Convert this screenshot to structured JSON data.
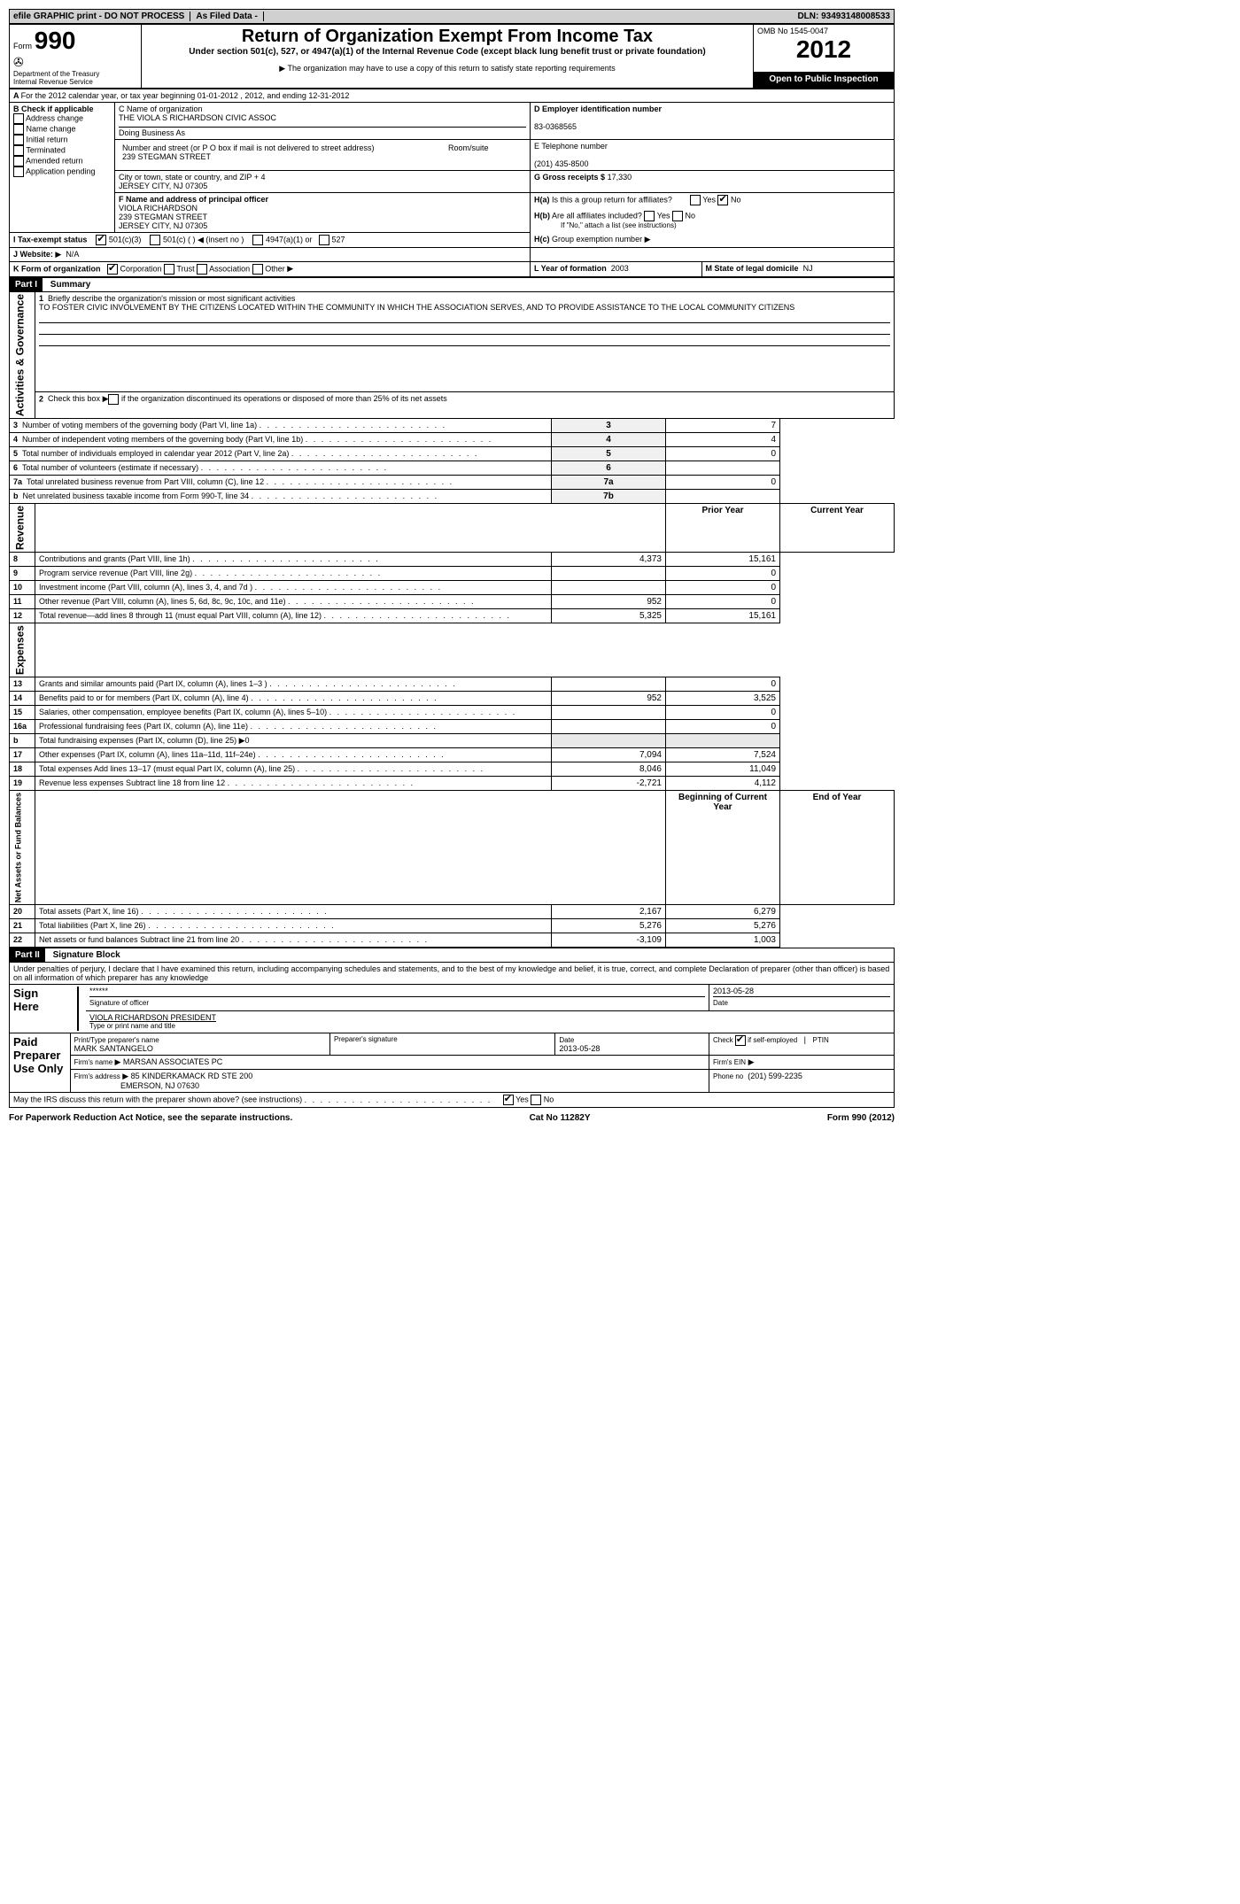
{
  "topbar": {
    "efile": "efile GRAPHIC print - DO NOT PROCESS",
    "asfiled": "As Filed Data -",
    "dln_label": "DLN:",
    "dln": "93493148008533"
  },
  "header": {
    "form_label": "Form",
    "form_num": "990",
    "dept": "Department of the Treasury",
    "irs": "Internal Revenue Service",
    "title": "Return of Organization Exempt From Income Tax",
    "subtitle": "Under section 501(c), 527, or 4947(a)(1) of the Internal Revenue Code (except black lung benefit trust or private foundation)",
    "note": "The organization may have to use a copy of this return to satisfy state reporting requirements",
    "omb": "OMB No 1545-0047",
    "year": "2012",
    "open": "Open to Public Inspection"
  },
  "sectionA": {
    "for_year": "For the 2012 calendar year, or tax year beginning 01-01-2012    , 2012, and ending 12-31-2012",
    "b_label": "B Check if applicable",
    "checks": [
      "Address change",
      "Name change",
      "Initial return",
      "Terminated",
      "Amended return",
      "Application pending"
    ],
    "c_name_label": "C Name of organization",
    "c_name": "THE VIOLA S RICHARDSON CIVIC ASSOC",
    "dba_label": "Doing Business As",
    "street_label": "Number and street (or P O  box if mail is not delivered to street address)",
    "room_label": "Room/suite",
    "street": "239 STEGMAN STREET",
    "city_label": "City or town, state or country, and ZIP + 4",
    "city": "JERSEY CITY, NJ  07305",
    "d_label": "D Employer identification number",
    "d_ein": "83-0368565",
    "e_label": "E Telephone number",
    "e_phone": "(201) 435-8500",
    "g_label": "G Gross receipts $",
    "g_val": "17,330",
    "f_label": "F  Name and address of principal officer",
    "f_name": "VIOLA RICHARDSON",
    "f_street": "239 STEGMAN STREET",
    "f_city": "JERSEY CITY, NJ  07305",
    "ha_label": "H(a)  Is this a group return for affiliates?",
    "hb_label": "H(b)  Are all affiliates included?",
    "hb_note": "If \"No,\" attach a list  (see instructions)",
    "hc_label": "H(c)   Group exemption number",
    "i_label": "I   Tax-exempt status",
    "i_opts": [
      "501(c)(3)",
      "501(c) ( )    (insert no )",
      "4947(a)(1) or",
      "527"
    ],
    "j_label": "J  Website:",
    "j_val": "N/A",
    "k_label": "K Form of organization",
    "k_opts": [
      "Corporation",
      "Trust",
      "Association",
      "Other"
    ],
    "l_label": "L Year of formation",
    "l_val": "2003",
    "m_label": "M State of legal domicile",
    "m_val": "NJ",
    "yes": "Yes",
    "no": "No"
  },
  "partI": {
    "tag": "Part I",
    "title": "Summary",
    "q1_label": "Briefly describe the organization's mission or most significant activities",
    "q1_text": "TO FOSTER CIVIC INVOLVEMENT BY THE CITIZENS LOCATED WITHIN THE COMMUNITY IN WHICH THE ASSOCIATION SERVES, AND TO PROVIDE ASSISTANCE TO THE LOCAL COMMUNITY CITIZENS",
    "q2": "Check this box ▶┌─ if the organization discontinued its operations or disposed of more than 25% of its net assets",
    "rows_gov": [
      {
        "n": "3",
        "t": "Number of voting members of the governing body (Part VI, line 1a)",
        "b": "3",
        "v": "7"
      },
      {
        "n": "4",
        "t": "Number of independent voting members of the governing body (Part VI, line 1b)",
        "b": "4",
        "v": "4"
      },
      {
        "n": "5",
        "t": "Total number of individuals employed in calendar year 2012 (Part V, line 2a)",
        "b": "5",
        "v": "0"
      },
      {
        "n": "6",
        "t": "Total number of volunteers (estimate if necessary)",
        "b": "6",
        "v": ""
      },
      {
        "n": "7a",
        "t": "Total unrelated business revenue from Part VIII, column (C), line 12",
        "b": "7a",
        "v": "0"
      },
      {
        "n": "b",
        "t": "Net unrelated business taxable income from Form 990-T, line 34",
        "b": "7b",
        "v": ""
      }
    ],
    "hdr_prior": "Prior Year",
    "hdr_current": "Current Year",
    "rows_rev": [
      {
        "n": "8",
        "t": "Contributions and grants (Part VIII, line 1h)",
        "p": "4,373",
        "c": "15,161"
      },
      {
        "n": "9",
        "t": "Program service revenue (Part VIII, line 2g)",
        "p": "",
        "c": "0"
      },
      {
        "n": "10",
        "t": "Investment income (Part VIII, column (A), lines 3, 4, and 7d )",
        "p": "",
        "c": "0"
      },
      {
        "n": "11",
        "t": "Other revenue (Part VIII, column (A), lines 5, 6d, 8c, 9c, 10c, and 11e)",
        "p": "952",
        "c": "0"
      },
      {
        "n": "12",
        "t": "Total revenue—add lines 8 through 11 (must equal Part VIII, column (A), line 12)",
        "p": "5,325",
        "c": "15,161"
      }
    ],
    "rows_exp": [
      {
        "n": "13",
        "t": "Grants and similar amounts paid (Part IX, column (A), lines 1–3 )",
        "p": "",
        "c": "0"
      },
      {
        "n": "14",
        "t": "Benefits paid to or for members (Part IX, column (A), line 4)",
        "p": "952",
        "c": "3,525"
      },
      {
        "n": "15",
        "t": "Salaries, other compensation, employee benefits (Part IX, column (A), lines 5–10)",
        "p": "",
        "c": "0"
      },
      {
        "n": "16a",
        "t": "Professional fundraising fees (Part IX, column (A), line 11e)",
        "p": "",
        "c": "0"
      },
      {
        "n": "b",
        "t": "Total fundraising expenses (Part IX, column (D), line 25)  ▶0",
        "p": "shaded",
        "c": "shaded"
      },
      {
        "n": "17",
        "t": "Other expenses (Part IX, column (A), lines 11a–11d, 11f–24e)",
        "p": "7,094",
        "c": "7,524"
      },
      {
        "n": "18",
        "t": "Total expenses  Add lines 13–17 (must equal Part IX, column (A), line 25)",
        "p": "8,046",
        "c": "11,049"
      },
      {
        "n": "19",
        "t": "Revenue less expenses  Subtract line 18 from line 12",
        "p": "-2,721",
        "c": "4,112"
      }
    ],
    "hdr_begin": "Beginning of Current Year",
    "hdr_end": "End of Year",
    "rows_net": [
      {
        "n": "20",
        "t": "Total assets (Part X, line 16)",
        "p": "2,167",
        "c": "6,279"
      },
      {
        "n": "21",
        "t": "Total liabilities (Part X, line 26)",
        "p": "5,276",
        "c": "5,276"
      },
      {
        "n": "22",
        "t": "Net assets or fund balances  Subtract line 21 from line 20",
        "p": "-3,109",
        "c": "1,003"
      }
    ],
    "vlabel_gov": "Activities & Governance",
    "vlabel_rev": "Revenue",
    "vlabel_exp": "Expenses",
    "vlabel_net": "Net Assets or Fund Balances"
  },
  "partII": {
    "tag": "Part II",
    "title": "Signature Block",
    "perjury": "Under penalties of perjury, I declare that I have examined this return, including accompanying schedules and statements, and to the best of my knowledge and belief, it is true, correct, and complete  Declaration of preparer (other than officer) is based on all information of which preparer has any knowledge",
    "sign_here": "Sign Here",
    "sig_stars": "******",
    "sig_label": "Signature of officer",
    "sig_date": "2013-05-28",
    "date_label": "Date",
    "officer_name": "VIOLA RICHARDSON PRESIDENT",
    "officer_label": "Type or print name and title",
    "paid": "Paid Preparer Use Only",
    "prep_name_label": "Print/Type preparer's name",
    "prep_name": "MARK SANTANGELO",
    "prep_sig_label": "Preparer's signature",
    "prep_date": "2013-05-28",
    "check_self": "Check       if self-employed",
    "ptin": "PTIN",
    "firm_name_label": "Firm's name     ",
    "firm_name": "MARSAN ASSOCIATES PC",
    "firm_ein_label": "Firm's EIN",
    "firm_addr_label": "Firm's address",
    "firm_addr1": "85 KINDERKAMACK RD STE 200",
    "firm_addr2": "EMERSON, NJ  07630",
    "firm_phone_label": "Phone no",
    "firm_phone": "(201) 599-2235",
    "discuss": "May the IRS discuss this return with the preparer shown above? (see instructions)"
  },
  "footer": {
    "pra": "For Paperwork Reduction Act Notice, see the separate instructions.",
    "cat": "Cat No 11282Y",
    "form": "Form 990 (2012)"
  }
}
